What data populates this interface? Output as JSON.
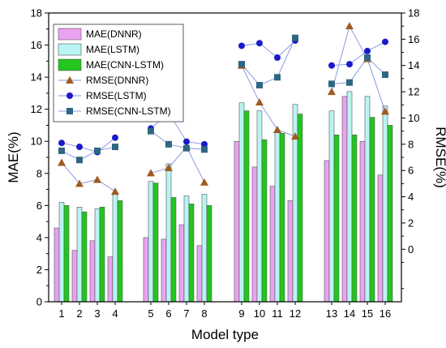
{
  "chart_data": {
    "type": "bar",
    "categories": [
      "1",
      "2",
      "3",
      "4",
      "5",
      "6",
      "7",
      "8",
      "9",
      "10",
      "11",
      "12",
      "13",
      "14",
      "15",
      "16"
    ],
    "xlabel": "Model type",
    "ylabel": "MAE(%)",
    "y2label": "RMSE(%)",
    "ylim": [
      0,
      18
    ],
    "y2lim": [
      -4,
      18
    ],
    "yticks": [
      "0",
      "2",
      "4",
      "6",
      "8",
      "10",
      "12",
      "14",
      "16",
      "18"
    ],
    "y2ticks": [
      "0",
      "2",
      "4",
      "6",
      "8",
      "10",
      "12",
      "14",
      "16",
      "18"
    ],
    "grid": false,
    "legend_position": "top-left",
    "bar_series": [
      {
        "name": "MAE(DNNR)",
        "color": "#e9a3f0",
        "values": [
          4.6,
          3.2,
          3.8,
          2.8,
          4.0,
          3.9,
          4.8,
          3.5,
          10.0,
          8.4,
          7.2,
          6.3,
          8.8,
          12.8,
          10.0,
          7.9
        ]
      },
      {
        "name": "MAE(LSTM)",
        "color": "#b8f4f2",
        "values": [
          6.2,
          5.9,
          5.8,
          6.7,
          7.5,
          8.6,
          6.6,
          6.7,
          12.4,
          11.9,
          10.7,
          12.3,
          11.9,
          13.1,
          12.8,
          12.2
        ]
      },
      {
        "name": "MAE(CNN-LSTM)",
        "color": "#22c61c",
        "values": [
          6.0,
          5.6,
          5.9,
          6.3,
          7.4,
          6.5,
          6.1,
          6.0,
          11.9,
          10.1,
          10.5,
          11.7,
          10.4,
          10.4,
          11.5,
          11.0
        ]
      }
    ],
    "line_series": [
      {
        "name": "RMSE(DNNR)",
        "color": "#a05a1e",
        "marker": "triangle",
        "values": [
          6.6,
          5.0,
          5.3,
          4.4,
          5.8,
          6.2,
          7.8,
          5.1,
          14.0,
          11.2,
          9.1,
          8.6,
          12.0,
          17.0,
          14.5,
          10.5
        ]
      },
      {
        "name": "RMSE(LSTM)",
        "color": "#1a1acb",
        "marker": "circle",
        "values": [
          8.1,
          7.8,
          7.4,
          8.5,
          9.2,
          10.4,
          8.2,
          8.0,
          15.5,
          15.7,
          14.6,
          15.9,
          14.0,
          14.1,
          15.1,
          15.8
        ]
      },
      {
        "name": "RMSE(CNN-LSTM)",
        "color": "#2f6682",
        "marker": "square",
        "values": [
          7.5,
          6.8,
          7.5,
          7.8,
          9.0,
          8.0,
          7.7,
          7.6,
          14.1,
          12.5,
          13.1,
          16.1,
          12.6,
          12.7,
          14.6,
          13.3
        ]
      }
    ],
    "line_color": "#8a9be0"
  }
}
